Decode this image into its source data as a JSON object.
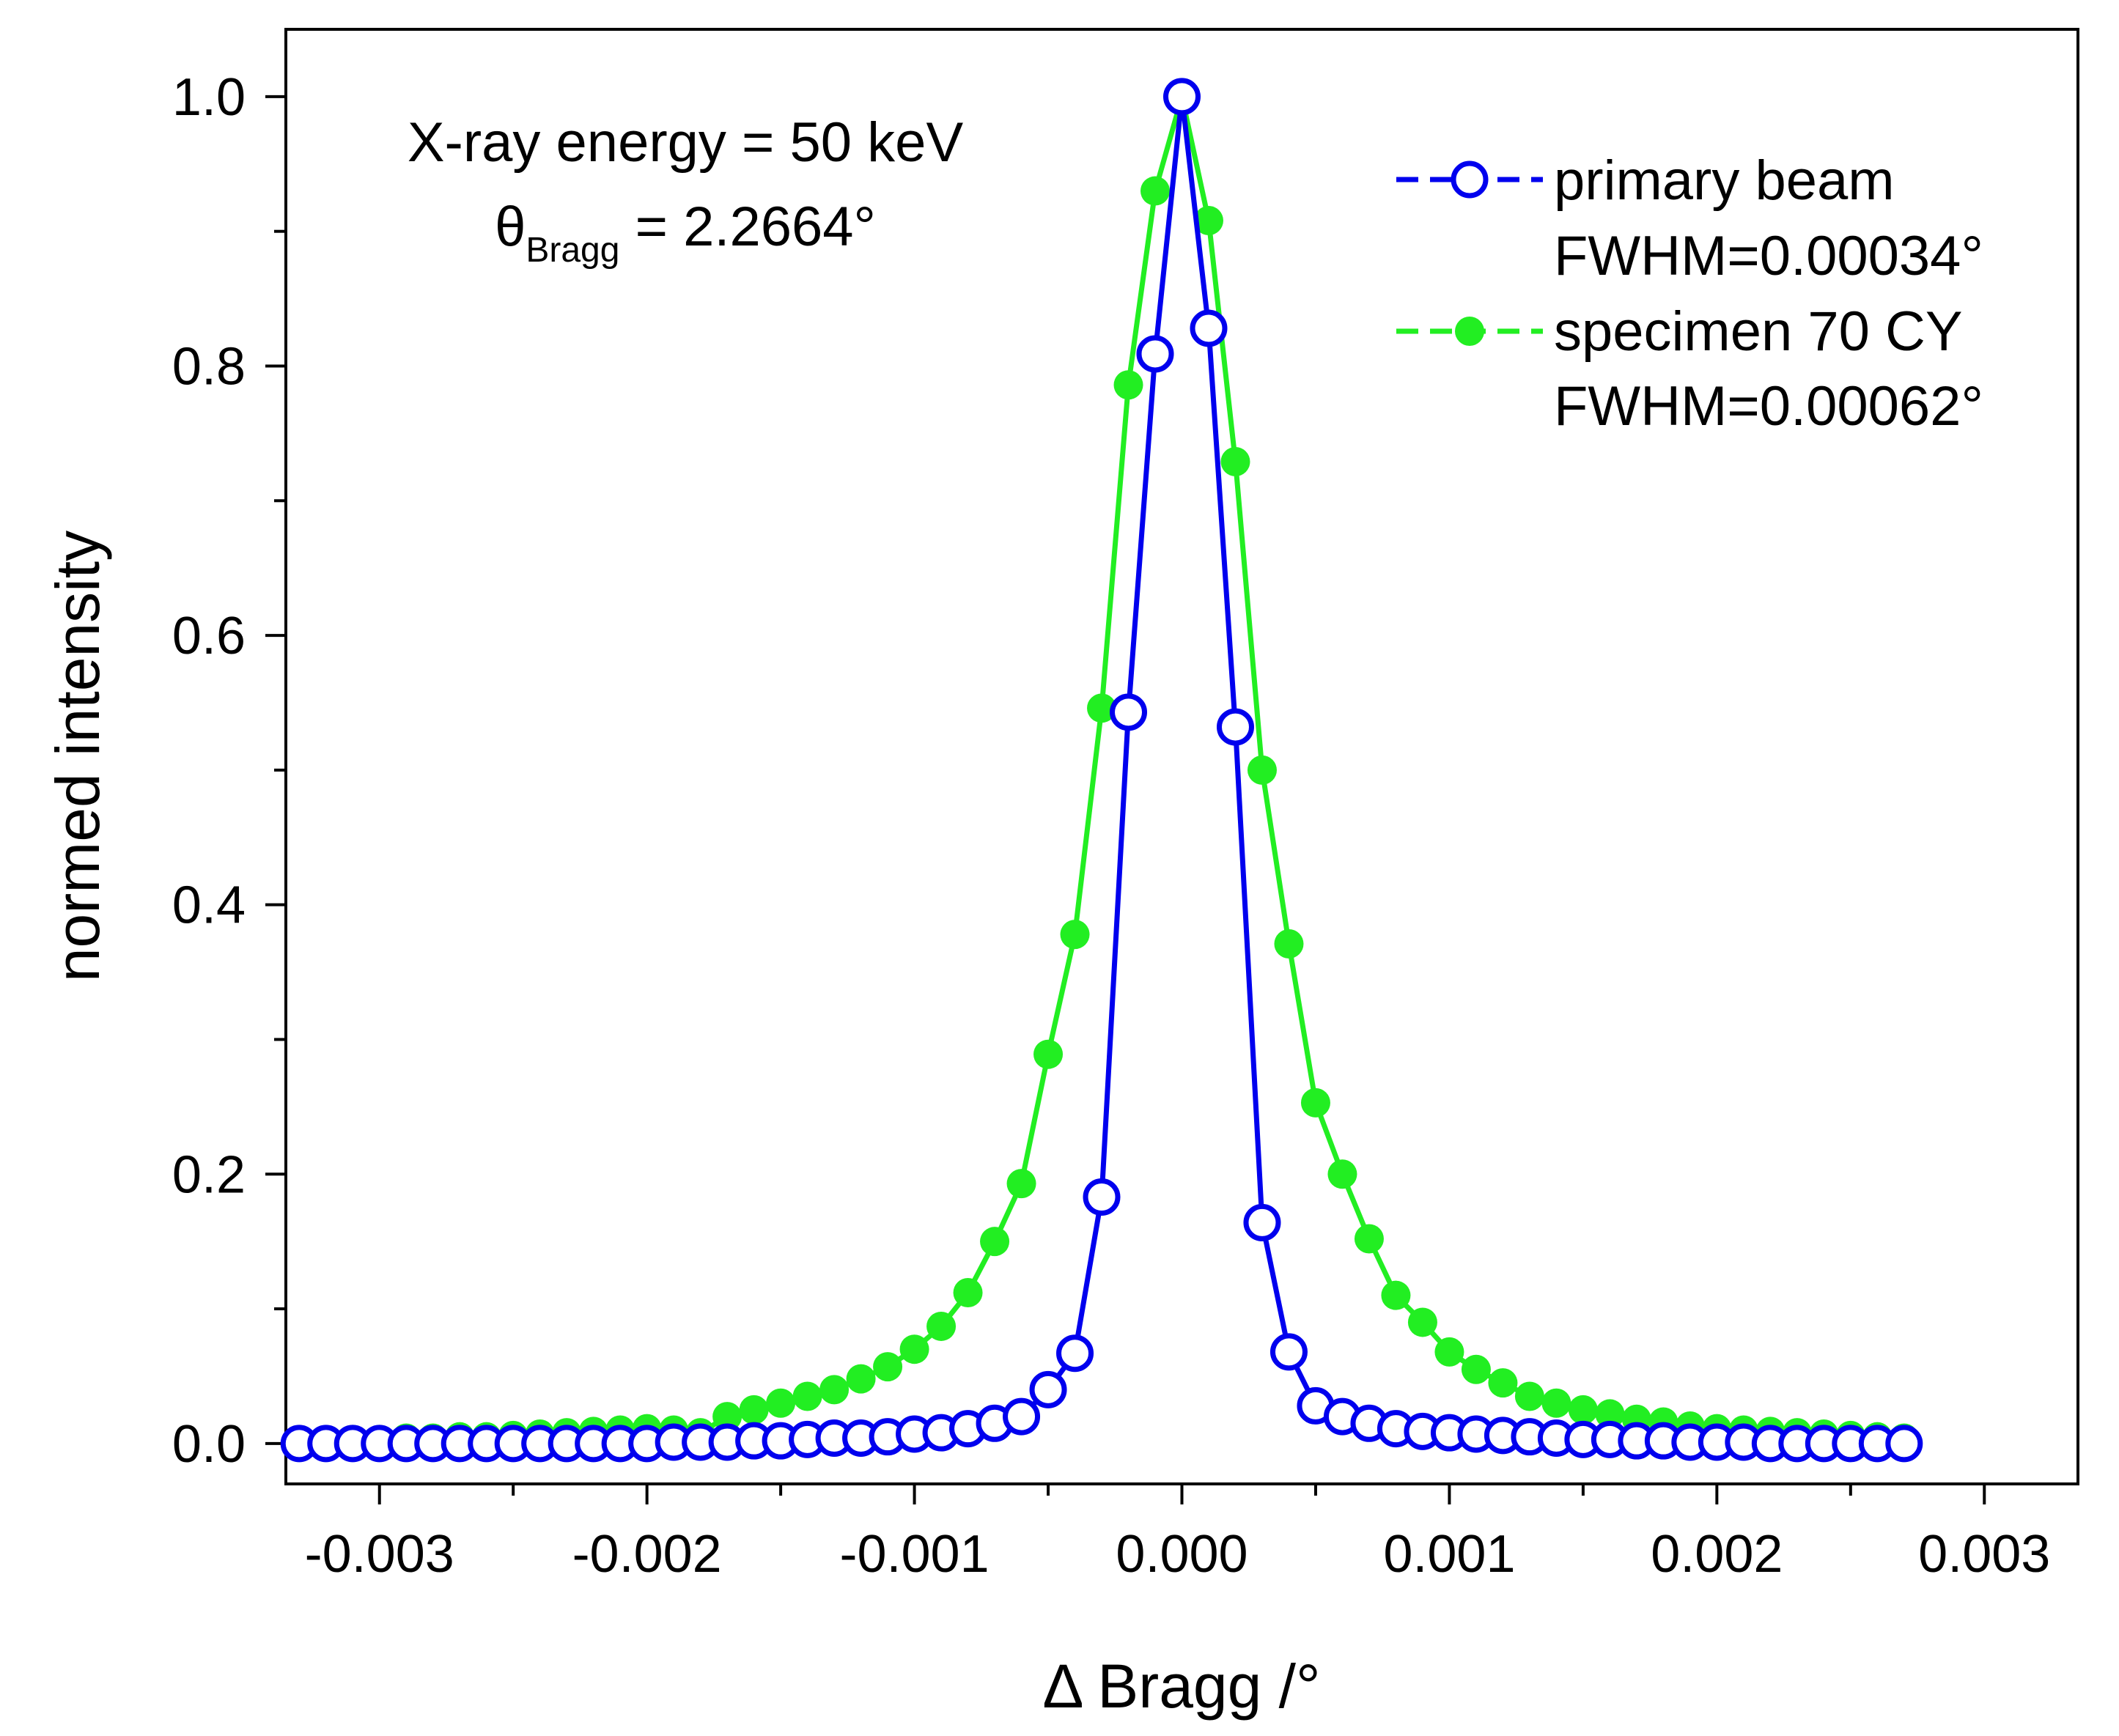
{
  "chart_data": {
    "type": "line",
    "xlabel": "Δ Bragg /°",
    "ylabel": "normed intensity",
    "xlim": [
      -0.00335,
      0.00335
    ],
    "ylim": [
      -0.03,
      1.05
    ],
    "xticks": [
      -0.003,
      -0.002,
      -0.001,
      0.0,
      0.001,
      0.002,
      0.003
    ],
    "xtick_labels": [
      "-0.003",
      "-0.002",
      "-0.001",
      "0.000",
      "0.001",
      "0.002",
      "0.003"
    ],
    "yticks": [
      0.0,
      0.2,
      0.4,
      0.6,
      0.8,
      1.0
    ],
    "ytick_labels": [
      "0.0",
      "0.2",
      "0.4",
      "0.6",
      "0.8",
      "1.0"
    ],
    "annotation": {
      "line1": "X-ray energy = 50 keV",
      "theta_symbol": "θ",
      "theta_sub": "Bragg",
      "theta_value": " = 2.2664°"
    },
    "legend_position": "top-right",
    "series": [
      {
        "name": "primary beam",
        "fwhm_label": "FWHM=0.00034°",
        "color": "#0000ee",
        "marker": "open-circle",
        "x": [
          -0.0033,
          -0.0032,
          -0.0031,
          -0.003,
          -0.0029,
          -0.0028,
          -0.0027,
          -0.0026,
          -0.0025,
          -0.0024,
          -0.0023,
          -0.0022,
          -0.0021,
          -0.002,
          -0.0019,
          -0.0018,
          -0.0017,
          -0.0016,
          -0.0015,
          -0.0014,
          -0.0013,
          -0.0012,
          -0.0011,
          -0.001,
          -0.0009,
          -0.0008,
          -0.0007,
          -0.0006,
          -0.0005,
          -0.0004,
          -0.0003,
          -0.0002,
          -0.0001,
          0.0,
          0.0001,
          0.0002,
          0.0003,
          0.0004,
          0.0005,
          0.0006,
          0.0007,
          0.0008,
          0.0009,
          0.001,
          0.0011,
          0.0012,
          0.0013,
          0.0014,
          0.0015,
          0.0016,
          0.0017,
          0.0018,
          0.0019,
          0.002,
          0.0021,
          0.0022,
          0.0023,
          0.0024,
          0.0025,
          0.0026,
          0.0027
        ],
        "y": [
          0.0,
          0.0,
          0.0,
          0.0,
          0.0,
          0.0,
          0.0,
          0.0,
          0.0,
          0.0,
          0.0,
          0.0,
          0.0,
          0.0,
          0.001,
          0.001,
          0.001,
          0.002,
          0.002,
          0.003,
          0.004,
          0.004,
          0.005,
          0.007,
          0.008,
          0.011,
          0.015,
          0.02,
          0.04,
          0.067,
          0.183,
          0.543,
          0.809,
          1.0,
          0.828,
          0.532,
          0.164,
          0.068,
          0.028,
          0.02,
          0.015,
          0.011,
          0.009,
          0.008,
          0.007,
          0.006,
          0.005,
          0.004,
          0.003,
          0.003,
          0.002,
          0.002,
          0.001,
          0.001,
          0.001,
          0.0,
          0.0,
          0.0,
          0.0,
          0.0,
          0.0
        ]
      },
      {
        "name": "specimen 70 CY",
        "fwhm_label": "FWHM=0.00062°",
        "color": "#22ee22",
        "marker": "filled-circle",
        "x": [
          -0.0033,
          -0.0032,
          -0.0031,
          -0.003,
          -0.0029,
          -0.0028,
          -0.0027,
          -0.0026,
          -0.0025,
          -0.0024,
          -0.0023,
          -0.0022,
          -0.0021,
          -0.002,
          -0.0019,
          -0.0018,
          -0.0017,
          -0.0016,
          -0.0015,
          -0.0014,
          -0.0013,
          -0.0012,
          -0.0011,
          -0.001,
          -0.0009,
          -0.0008,
          -0.0007,
          -0.0006,
          -0.0005,
          -0.0004,
          -0.0003,
          -0.0002,
          -0.0001,
          0.0,
          0.0001,
          0.0002,
          0.0003,
          0.0004,
          0.0005,
          0.0006,
          0.0007,
          0.0008,
          0.0009,
          0.001,
          0.0011,
          0.0012,
          0.0013,
          0.0014,
          0.0015,
          0.0016,
          0.0017,
          0.0018,
          0.0019,
          0.002,
          0.0021,
          0.0022,
          0.0023,
          0.0024,
          0.0025,
          0.0026,
          0.0027
        ],
        "y": [
          0.002,
          0.002,
          0.003,
          0.003,
          0.004,
          0.004,
          0.005,
          0.005,
          0.006,
          0.007,
          0.008,
          0.009,
          0.01,
          0.011,
          0.01,
          0.008,
          0.02,
          0.025,
          0.03,
          0.035,
          0.04,
          0.048,
          0.057,
          0.07,
          0.087,
          0.112,
          0.15,
          0.193,
          0.289,
          0.378,
          0.546,
          0.786,
          0.93,
          1.0,
          0.908,
          0.729,
          0.5,
          0.371,
          0.253,
          0.2,
          0.152,
          0.11,
          0.09,
          0.068,
          0.055,
          0.045,
          0.035,
          0.03,
          0.025,
          0.022,
          0.018,
          0.016,
          0.013,
          0.011,
          0.01,
          0.009,
          0.008,
          0.007,
          0.006,
          0.005,
          0.004
        ]
      }
    ]
  }
}
